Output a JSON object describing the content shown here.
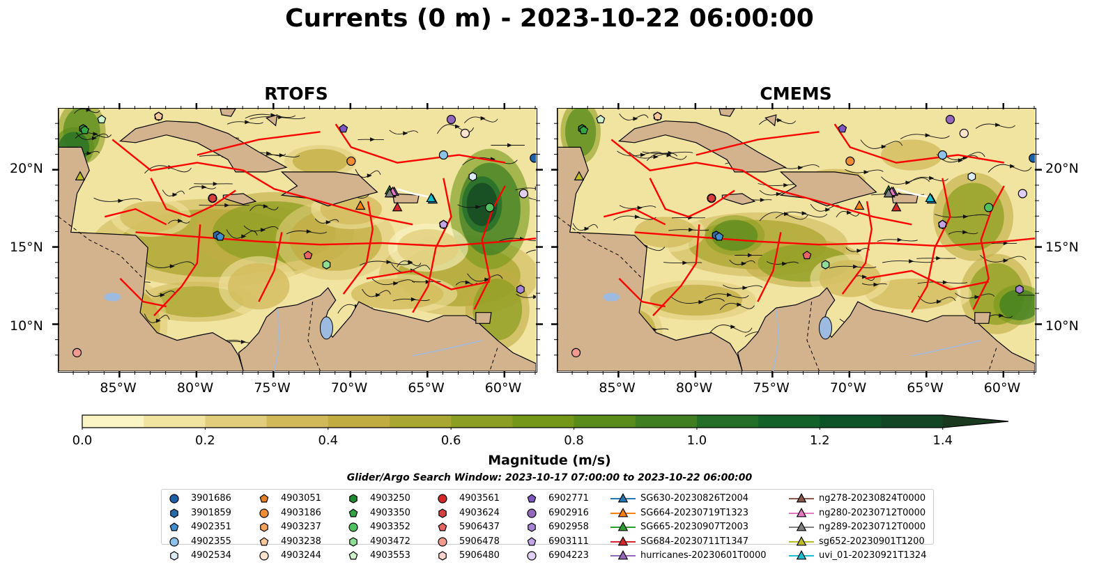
{
  "title": "Currents (0 m) - 2023-10-22 06:00:00",
  "panels": [
    {
      "title": "RTOFS"
    },
    {
      "title": "CMEMS"
    }
  ],
  "axes": {
    "lon_labels": [
      "85°W",
      "80°W",
      "75°W",
      "70°W",
      "65°W",
      "60°W"
    ],
    "lat_labels": [
      "20°N",
      "15°N",
      "10°N"
    ]
  },
  "colorbar": {
    "label": "Magnitude (m/s)",
    "ticks": [
      "0.0",
      "0.2",
      "0.4",
      "0.6",
      "0.8",
      "1.0",
      "1.2",
      "1.4"
    ],
    "range": [
      0,
      1.5
    ],
    "extend": "max",
    "colors": [
      "#fbf5c6",
      "#f1e3a0",
      "#e1cd7b",
      "#d1b95a",
      "#c1ac42",
      "#a9a631",
      "#8d9f22",
      "#749719",
      "#5a8c1c",
      "#3f7f21",
      "#246f27",
      "#12622a",
      "#0c5428",
      "#134624",
      "#1a3a1f"
    ]
  },
  "search_window": "Glider/Argo Search Window: 2023-10-17 07:00:00 to 2023-10-22 06:00:00",
  "land_color": "#d3b38d",
  "eez_color": "#ff0000",
  "legend": [
    {
      "label": "3901686",
      "marker": "circle",
      "color": "#1f5fa8"
    },
    {
      "label": "3901859",
      "marker": "hexagon",
      "color": "#2a6aa8"
    },
    {
      "label": "4902351",
      "marker": "pentagon",
      "color": "#3f8fd1"
    },
    {
      "label": "4902355",
      "marker": "circle",
      "color": "#8ec2ea"
    },
    {
      "label": "4902534",
      "marker": "hexagon",
      "color": "#dcecf7"
    },
    {
      "label": "4903051",
      "marker": "pentagon",
      "color": "#e67e22"
    },
    {
      "label": "4903186",
      "marker": "circle",
      "color": "#f08c32"
    },
    {
      "label": "4903237",
      "marker": "hexagon",
      "color": "#f5a25a"
    },
    {
      "label": "4903238",
      "marker": "pentagon",
      "color": "#f9c89a"
    },
    {
      "label": "4903244",
      "marker": "circle",
      "color": "#fde4cc"
    },
    {
      "label": "4903250",
      "marker": "hexagon",
      "color": "#1e8c2e"
    },
    {
      "label": "4903350",
      "marker": "pentagon",
      "color": "#32a645"
    },
    {
      "label": "4903352",
      "marker": "circle",
      "color": "#4fc260"
    },
    {
      "label": "4903472",
      "marker": "hexagon",
      "color": "#8fdc95"
    },
    {
      "label": "4903553",
      "marker": "pentagon",
      "color": "#cdf2cc"
    },
    {
      "label": "4903561",
      "marker": "circle",
      "color": "#d62728"
    },
    {
      "label": "4903624",
      "marker": "hexagon",
      "color": "#d84040"
    },
    {
      "label": "5906437",
      "marker": "pentagon",
      "color": "#ea6464"
    },
    {
      "label": "5906478",
      "marker": "circle",
      "color": "#f29a8e"
    },
    {
      "label": "5906480",
      "marker": "hexagon",
      "color": "#fad4cc"
    },
    {
      "label": "6902771",
      "marker": "pentagon",
      "color": "#7e57c2"
    },
    {
      "label": "6902916",
      "marker": "circle",
      "color": "#9467bd"
    },
    {
      "label": "6902958",
      "marker": "hexagon",
      "color": "#a784d6"
    },
    {
      "label": "6903111",
      "marker": "pentagon",
      "color": "#c3a6e6"
    },
    {
      "label": "6904223",
      "marker": "circle",
      "color": "#e2cff5"
    },
    {
      "label": "SG630-20230826T2004",
      "marker": "triangle",
      "color": "#1f77b4"
    },
    {
      "label": "SG664-20230719T1323",
      "marker": "triangle",
      "color": "#ff7f0e"
    },
    {
      "label": "SG665-20230907T2003",
      "marker": "triangle",
      "color": "#2ca02c"
    },
    {
      "label": "SG684-20230711T1347",
      "marker": "triangle",
      "color": "#d62728"
    },
    {
      "label": "hurricanes-20230601T0000",
      "marker": "triangle",
      "color": "#9467bd"
    },
    {
      "label": "ng278-20230824T0000",
      "marker": "triangle",
      "color": "#8c564b"
    },
    {
      "label": "ng280-20230712T0000",
      "marker": "triangle",
      "color": "#e377c2"
    },
    {
      "label": "ng289-20230712T0000",
      "marker": "triangle",
      "color": "#7f7f7f"
    },
    {
      "label": "sg652-20230901T1200",
      "marker": "triangle",
      "color": "#bcbd22"
    },
    {
      "label": "uvi_01-20230921T1324",
      "marker": "triangle",
      "color": "#17becf"
    }
  ]
}
